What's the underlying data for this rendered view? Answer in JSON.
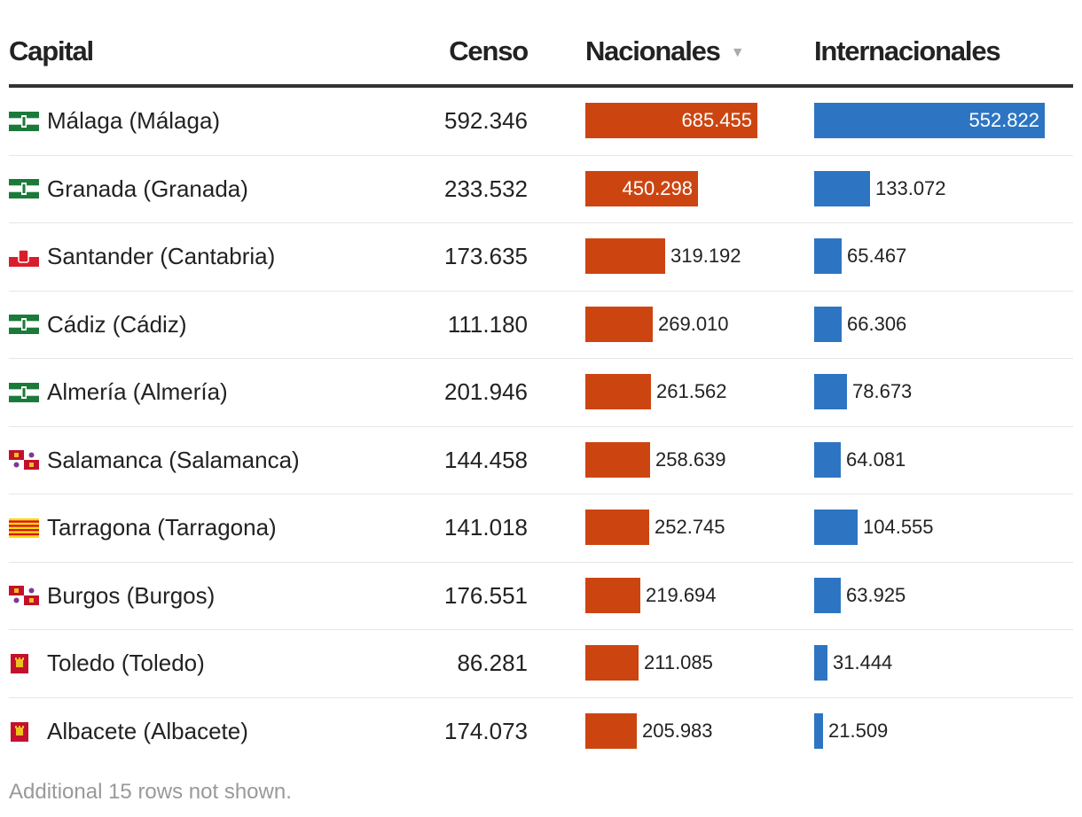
{
  "table": {
    "headers": {
      "capital": "Capital",
      "censo": "Censo",
      "nacionales": "Nacionales",
      "internacionales": "Internacionales",
      "sort_indicator": "▼"
    },
    "footer": "Additional 15 rows not shown."
  },
  "colors": {
    "nacionales": "#cc4511",
    "internacionales": "#2d75c2"
  },
  "chart_data": {
    "type": "table",
    "columns": [
      "Capital",
      "Censo",
      "Nacionales",
      "Internacionales"
    ],
    "sorted_by": "Nacionales",
    "sort_order": "descending",
    "rows": [
      {
        "capital": "Málaga (Málaga)",
        "flag": "andalucia-flag-icon",
        "censo": "592.346",
        "nacionales": 685455,
        "nacionales_label": "685.455",
        "internacionales": 552822,
        "internacionales_label": "552.822"
      },
      {
        "capital": "Granada (Granada)",
        "flag": "andalucia-flag-icon",
        "censo": "233.532",
        "nacionales": 450298,
        "nacionales_label": "450.298",
        "internacionales": 133072,
        "internacionales_label": "133.072"
      },
      {
        "capital": "Santander (Cantabria)",
        "flag": "cantabria-flag-icon",
        "censo": "173.635",
        "nacionales": 319192,
        "nacionales_label": "319.192",
        "internacionales": 65467,
        "internacionales_label": "65.467"
      },
      {
        "capital": "Cádiz (Cádiz)",
        "flag": "andalucia-flag-icon",
        "censo": "111.180",
        "nacionales": 269010,
        "nacionales_label": "269.010",
        "internacionales": 66306,
        "internacionales_label": "66.306"
      },
      {
        "capital": "Almería (Almería)",
        "flag": "andalucia-flag-icon",
        "censo": "201.946",
        "nacionales": 261562,
        "nacionales_label": "261.562",
        "internacionales": 78673,
        "internacionales_label": "78.673"
      },
      {
        "capital": "Salamanca (Salamanca)",
        "flag": "castilla-leon-flag-icon",
        "censo": "144.458",
        "nacionales": 258639,
        "nacionales_label": "258.639",
        "internacionales": 64081,
        "internacionales_label": "64.081"
      },
      {
        "capital": "Tarragona (Tarragona)",
        "flag": "catalunya-flag-icon",
        "censo": "141.018",
        "nacionales": 252745,
        "nacionales_label": "252.745",
        "internacionales": 104555,
        "internacionales_label": "104.555"
      },
      {
        "capital": "Burgos (Burgos)",
        "flag": "castilla-leon-flag-icon",
        "censo": "176.551",
        "nacionales": 219694,
        "nacionales_label": "219.694",
        "internacionales": 63925,
        "internacionales_label": "63.925"
      },
      {
        "capital": "Toledo (Toledo)",
        "flag": "castilla-la-mancha-flag-icon",
        "censo": "86.281",
        "nacionales": 211085,
        "nacionales_label": "211.085",
        "internacionales": 31444,
        "internacionales_label": "31.444"
      },
      {
        "capital": "Albacete (Albacete)",
        "flag": "castilla-la-mancha-flag-icon",
        "censo": "174.073",
        "nacionales": 205983,
        "nacionales_label": "205.983",
        "internacionales": 21509,
        "internacionales_label": "21.509"
      }
    ]
  }
}
